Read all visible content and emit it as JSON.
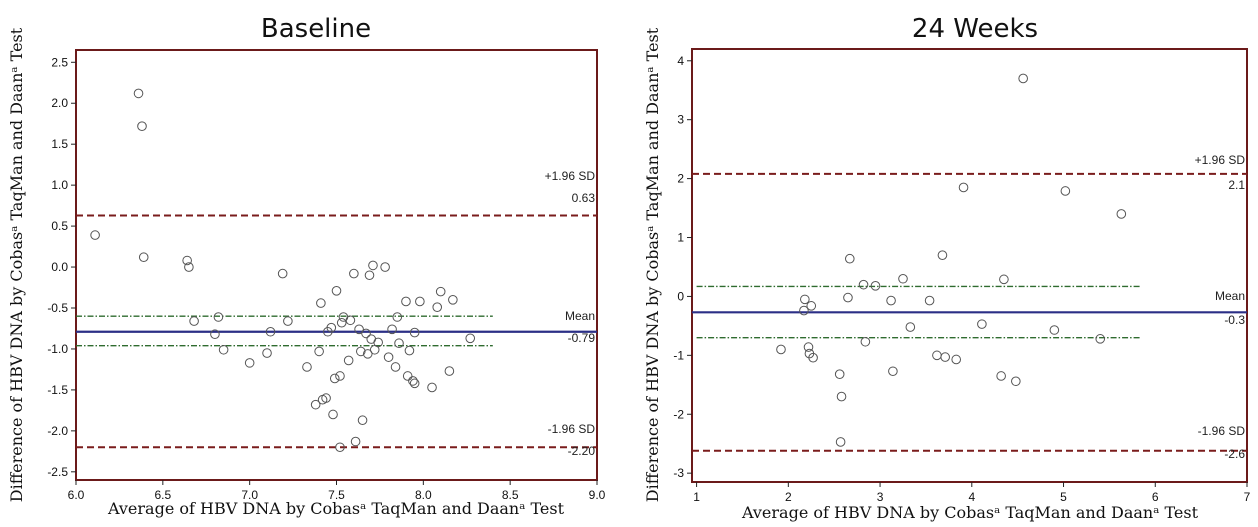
{
  "colors": {
    "frame": "#6b1a1a",
    "mean_line": "#2b2f86",
    "sd_line": "#7a1c1c",
    "ci_line": "#2f6b2f",
    "point_stroke": "#555555"
  },
  "chart_data": [
    {
      "type": "scatter",
      "title": "Baseline",
      "xlabel": "Average of HBV DNA  by Cobasᵃ TaqMan and Daanᵃ Test",
      "ylabel": "Difference of HBV DNA by Cobasᵃ TaqMan and Daanᵃ Test",
      "xlim": [
        6.0,
        9.0
      ],
      "ylim": [
        -2.6,
        2.65
      ],
      "xticks": [
        6.0,
        6.5,
        7.0,
        7.5,
        8.0,
        8.5,
        9.0
      ],
      "xtick_labels": [
        "6.0",
        "6.5",
        "7.0",
        "7.5",
        "8.0",
        "8.5",
        "9.0"
      ],
      "yticks": [
        2.5,
        2.0,
        1.5,
        1.0,
        0.5,
        0.0,
        -0.5,
        -1.0,
        -1.5,
        -2.0,
        -2.5
      ],
      "ytick_labels": [
        "2.5",
        "2.0",
        "1.5",
        "1.0",
        "0.5",
        "0.0",
        "-0.5",
        "-1.0",
        "-1.5",
        "-2.0",
        "-2.5"
      ],
      "mean": {
        "value": -0.79,
        "label": "Mean",
        "value_label": "-0.79"
      },
      "upper_loa": {
        "value": 0.63,
        "label": "+1.96 SD",
        "value_label": "0.63"
      },
      "lower_loa": {
        "value": -2.2,
        "label": "-1.96 SD",
        "value_label": "-2.20"
      },
      "mean_ci": [
        -0.6,
        -0.96
      ],
      "line_x_end": 9.0,
      "ci_x_range": [
        6.0,
        8.4
      ],
      "points": [
        [
          6.11,
          0.39
        ],
        [
          6.36,
          2.12
        ],
        [
          6.38,
          1.72
        ],
        [
          6.39,
          0.12
        ],
        [
          6.64,
          0.08
        ],
        [
          6.65,
          0.0
        ],
        [
          6.68,
          -0.66
        ],
        [
          6.8,
          -0.82
        ],
        [
          6.82,
          -0.61
        ],
        [
          6.85,
          -1.01
        ],
        [
          7.0,
          -1.17
        ],
        [
          7.1,
          -1.05
        ],
        [
          7.12,
          -0.79
        ],
        [
          7.19,
          -0.08
        ],
        [
          7.22,
          -0.66
        ],
        [
          7.33,
          -1.22
        ],
        [
          7.38,
          -1.68
        ],
        [
          7.4,
          -1.03
        ],
        [
          7.41,
          -0.44
        ],
        [
          7.42,
          -1.62
        ],
        [
          7.44,
          -1.6
        ],
        [
          7.45,
          -0.79
        ],
        [
          7.47,
          -0.74
        ],
        [
          7.48,
          -1.8
        ],
        [
          7.49,
          -1.36
        ],
        [
          7.5,
          -0.29
        ],
        [
          7.52,
          -1.33
        ],
        [
          7.52,
          -2.2
        ],
        [
          7.53,
          -0.68
        ],
        [
          7.54,
          -0.61
        ],
        [
          7.57,
          -1.14
        ],
        [
          7.58,
          -0.65
        ],
        [
          7.6,
          -0.08
        ],
        [
          7.61,
          -2.13
        ],
        [
          7.63,
          -0.76
        ],
        [
          7.64,
          -1.03
        ],
        [
          7.65,
          -1.87
        ],
        [
          7.67,
          -0.81
        ],
        [
          7.68,
          -1.06
        ],
        [
          7.69,
          -0.1
        ],
        [
          7.7,
          -0.88
        ],
        [
          7.71,
          0.02
        ],
        [
          7.72,
          -1.01
        ],
        [
          7.74,
          -0.92
        ],
        [
          7.78,
          0.0
        ],
        [
          7.8,
          -1.1
        ],
        [
          7.82,
          -0.76
        ],
        [
          7.84,
          -1.22
        ],
        [
          7.85,
          -0.61
        ],
        [
          7.86,
          -0.93
        ],
        [
          7.9,
          -0.42
        ],
        [
          7.91,
          -1.33
        ],
        [
          7.92,
          -1.02
        ],
        [
          7.94,
          -1.39
        ],
        [
          7.95,
          -1.42
        ],
        [
          7.95,
          -0.8
        ],
        [
          7.98,
          -0.42
        ],
        [
          8.05,
          -1.47
        ],
        [
          8.08,
          -0.49
        ],
        [
          8.1,
          -0.3
        ],
        [
          8.15,
          -1.27
        ],
        [
          8.17,
          -0.4
        ],
        [
          8.27,
          -0.87
        ]
      ]
    },
    {
      "type": "scatter",
      "title": "24 Weeks",
      "xlabel": "Average of HBV DNA  by Cobasᵃ TaqMan and Daanᵃ Test",
      "ylabel": "Difference of HBV DNA by Cobasᵃ TaqMan and Daanᵃ Test",
      "xlim": [
        0.95,
        7.0
      ],
      "ylim": [
        -3.15,
        4.2
      ],
      "xticks": [
        1,
        2,
        3,
        4,
        5,
        6,
        7
      ],
      "xtick_labels": [
        "1",
        "2",
        "3",
        "4",
        "5",
        "6",
        "7"
      ],
      "yticks": [
        4,
        3,
        2,
        1,
        0,
        -1,
        -2,
        -3
      ],
      "ytick_labels": [
        "4",
        "3",
        "2",
        "1",
        "0",
        "-1",
        "-2",
        "-3"
      ],
      "mean": {
        "value": -0.27,
        "label": "Mean",
        "value_label": "-0.3"
      },
      "upper_loa": {
        "value": 2.08,
        "label": "+1.96 SD",
        "value_label": "2.1"
      },
      "lower_loa": {
        "value": -2.62,
        "label": "-1.96 SD",
        "value_label": "-2.6"
      },
      "mean_ci": [
        0.17,
        -0.7
      ],
      "line_x_end": 7.0,
      "ci_x_range": [
        1.0,
        5.85
      ],
      "points": [
        [
          1.92,
          -0.9
        ],
        [
          2.17,
          -0.24
        ],
        [
          2.18,
          -0.05
        ],
        [
          2.22,
          -0.86
        ],
        [
          2.23,
          -0.97
        ],
        [
          2.25,
          -0.16
        ],
        [
          2.27,
          -1.04
        ],
        [
          2.56,
          -1.32
        ],
        [
          2.57,
          -2.47
        ],
        [
          2.58,
          -1.7
        ],
        [
          2.65,
          -0.02
        ],
        [
          2.67,
          0.64
        ],
        [
          2.82,
          0.2
        ],
        [
          2.84,
          -0.77
        ],
        [
          2.95,
          0.18
        ],
        [
          3.12,
          -0.07
        ],
        [
          3.14,
          -1.27
        ],
        [
          3.25,
          0.3
        ],
        [
          3.33,
          -0.52
        ],
        [
          3.54,
          -0.07
        ],
        [
          3.62,
          -1.0
        ],
        [
          3.68,
          0.7
        ],
        [
          3.71,
          -1.03
        ],
        [
          3.83,
          -1.07
        ],
        [
          3.91,
          1.85
        ],
        [
          4.11,
          -0.47
        ],
        [
          4.32,
          -1.35
        ],
        [
          4.35,
          0.29
        ],
        [
          4.48,
          -1.44
        ],
        [
          4.56,
          3.7
        ],
        [
          4.9,
          -0.57
        ],
        [
          5.02,
          1.79
        ],
        [
          5.4,
          -0.72
        ],
        [
          5.63,
          1.4
        ]
      ]
    }
  ]
}
